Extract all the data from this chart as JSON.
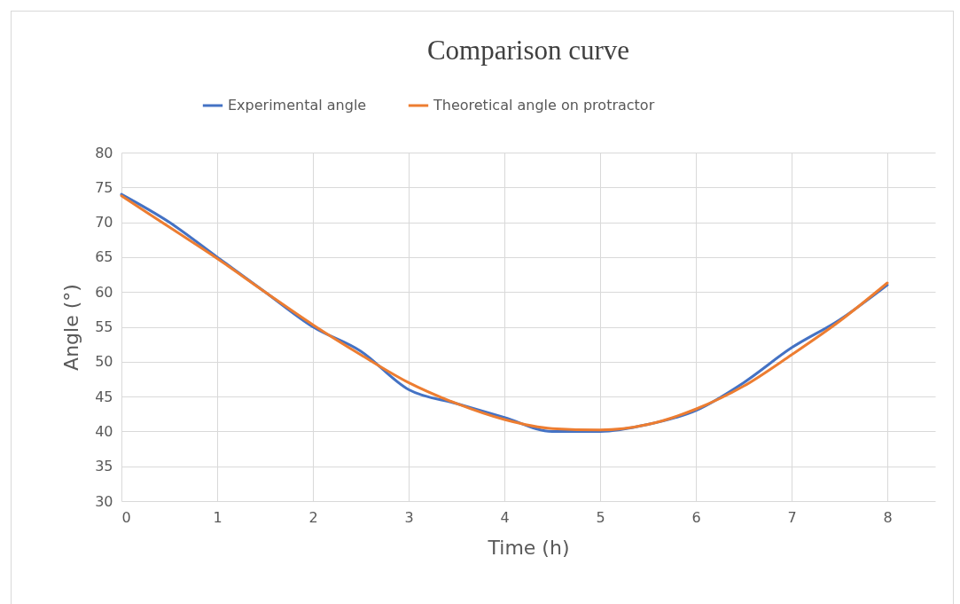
{
  "chart_data": {
    "type": "line",
    "title": "Comparison curve",
    "xlabel": "Time (h)",
    "ylabel": "Angle (°)",
    "x": [
      0,
      0.5,
      1,
      1.5,
      2,
      2.5,
      3,
      3.5,
      4,
      4.5,
      5,
      5.5,
      6,
      6.5,
      7,
      7.5,
      8
    ],
    "series": [
      {
        "name": "Experimental angle",
        "color": "#4472c4",
        "values": [
          74,
          70,
          65,
          60,
          55,
          51.5,
          46,
          44,
          42,
          40,
          40,
          41,
          43,
          47,
          52,
          56,
          61
        ]
      },
      {
        "name": "Theoretical angle on protractor",
        "color": "#ed7d31",
        "values": [
          73.8,
          69.3,
          64.8,
          60,
          55.3,
          51,
          47,
          44,
          41.7,
          40.4,
          40.2,
          41,
          43.2,
          46.5,
          51,
          55.8,
          61.3
        ]
      }
    ],
    "xlim": [
      0,
      8.5
    ],
    "xticks": [
      0,
      1,
      2,
      3,
      4,
      5,
      6,
      7,
      8
    ],
    "ylim": [
      30,
      80
    ],
    "yticks": [
      30,
      35,
      40,
      45,
      50,
      55,
      60,
      65,
      70,
      75,
      80
    ],
    "grid": true,
    "legend": "top",
    "marker": "none",
    "line_style": "solid"
  }
}
